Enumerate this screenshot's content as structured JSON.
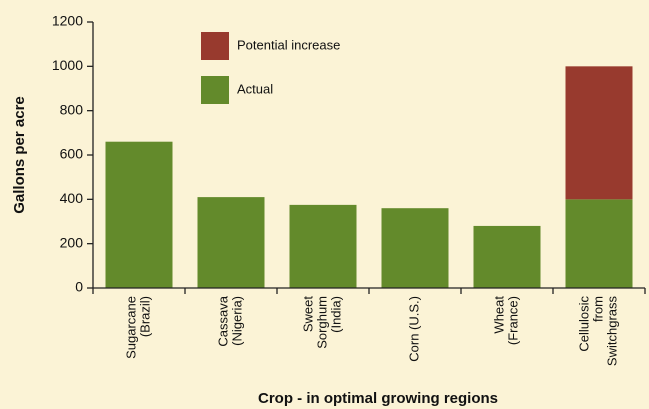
{
  "chart_data": {
    "type": "stacked-bar",
    "xlabel": "Crop - in optimal growing regions",
    "ylabel": "Gallons per acre",
    "categories": [
      [
        "Sugarcane",
        "(Brazil)"
      ],
      [
        "Cassava",
        "(Nigeria)"
      ],
      [
        "Sweet",
        "Sorghum",
        "(India)"
      ],
      [
        "Corn (U.S.)"
      ],
      [
        "Wheat",
        "(France)"
      ],
      [
        "Cellulosic",
        "from",
        "Switchgrass"
      ]
    ],
    "series": [
      {
        "name": "Actual",
        "color": "#638a2b",
        "values": [
          660,
          410,
          375,
          360,
          280,
          400
        ]
      },
      {
        "name": "Potential increase",
        "color": "#983a2e",
        "values": [
          null,
          null,
          null,
          null,
          null,
          600
        ]
      }
    ],
    "ylim": [
      0,
      1200
    ],
    "yticks": [
      0,
      200,
      400,
      600,
      800,
      1000,
      1200
    ]
  }
}
